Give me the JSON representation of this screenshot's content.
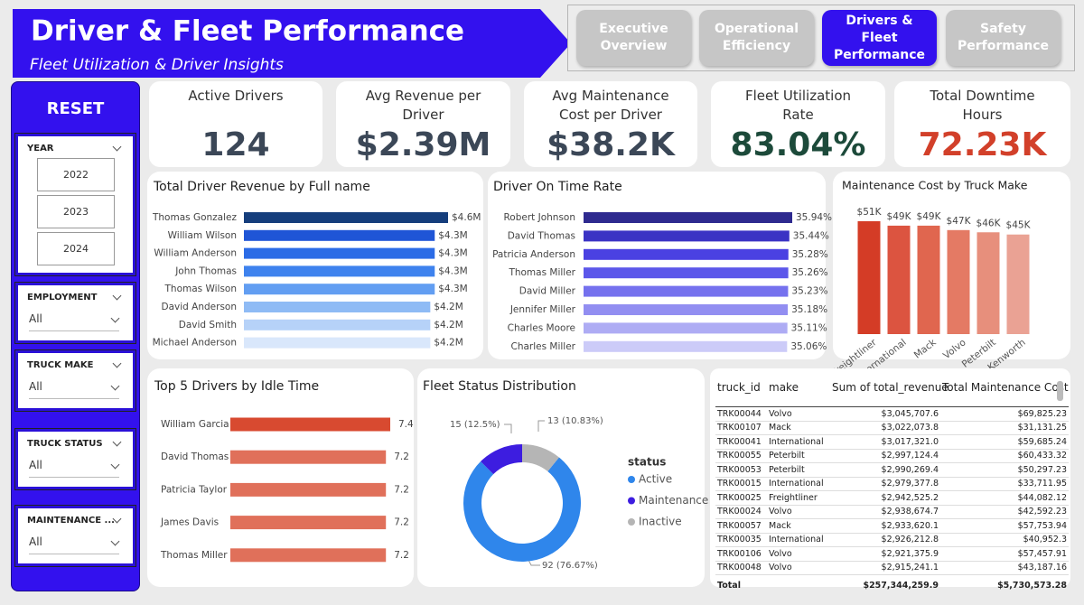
{
  "header": {
    "title": "Driver & Fleet Performance",
    "subtitle": "Fleet Utilization & Driver Insights"
  },
  "nav": {
    "items": [
      "Executive Overview",
      "Operational Efficiency",
      "Drivers & Fleet Performance",
      "Safety Performance"
    ],
    "active": 2
  },
  "sidebar": {
    "reset": "RESET",
    "slicers": [
      {
        "title": "YEAR",
        "options": [
          "2022",
          "2023",
          "2024"
        ]
      },
      {
        "title": "EMPLOYMENT",
        "selection": "All"
      },
      {
        "title": "TRUCK MAKE",
        "selection": "All"
      },
      {
        "title": "TRUCK STATUS",
        "selection": "All"
      },
      {
        "title": "MAINTENANCE ...",
        "selection": "All"
      }
    ]
  },
  "kpis": [
    {
      "label": "Active Drivers",
      "value": "124",
      "color": "#3b4757"
    },
    {
      "label": "Avg Revenue per Driver",
      "value": "$2.39M",
      "color": "#3b4757"
    },
    {
      "label": "Avg Maintenance Cost per Driver",
      "value": "$38.2K",
      "color": "#3b4757"
    },
    {
      "label": "Fleet Utilization Rate",
      "value": "83.04%",
      "color": "#1c4a3a"
    },
    {
      "label": "Total Downtime Hours",
      "value": "72.23K",
      "color": "#d2402a"
    }
  ],
  "chart_data": [
    {
      "type": "bar",
      "orientation": "horizontal",
      "title": "Total Driver Revenue by Full name",
      "categories": [
        "Thomas Gonzalez",
        "William Wilson",
        "William Anderson",
        "John Thomas",
        "Thomas Wilson",
        "David Anderson",
        "David Smith",
        "Michael Anderson"
      ],
      "values": [
        4.6,
        4.3,
        4.3,
        4.3,
        4.3,
        4.2,
        4.2,
        4.2
      ],
      "value_labels": [
        "$4.6M",
        "$4.3M",
        "$4.3M",
        "$4.3M",
        "$4.3M",
        "$4.2M",
        "$4.2M",
        "$4.2M"
      ],
      "colors": [
        "#153e7c",
        "#1f55d6",
        "#2b6be6",
        "#3e82ee",
        "#629ef2",
        "#8fbbf5",
        "#b6d2f8",
        "#d9e7fb"
      ]
    },
    {
      "type": "bar",
      "orientation": "horizontal",
      "title": "Driver On Time Rate",
      "categories": [
        "Robert Johnson",
        "David Thomas",
        "Patricia Anderson",
        "Thomas Miller",
        "David Miller",
        "Jennifer Miller",
        "Charles Moore",
        "Charles Miller"
      ],
      "values": [
        35.94,
        35.44,
        35.28,
        35.26,
        35.23,
        35.18,
        35.11,
        35.06
      ],
      "value_labels": [
        "35.94%",
        "35.44%",
        "35.28%",
        "35.26%",
        "35.23%",
        "35.18%",
        "35.11%",
        "35.06%"
      ],
      "colors": [
        "#2e2a8f",
        "#3b33c4",
        "#4a41e2",
        "#5c57ea",
        "#7571ee",
        "#928ef1",
        "#aeacf4",
        "#cccbf8"
      ]
    },
    {
      "type": "bar",
      "orientation": "vertical",
      "title": "Maintenance Cost by Truck Make",
      "categories": [
        "Freightliner",
        "International",
        "Mack",
        "Volvo",
        "Peterbilt",
        "Kenworth"
      ],
      "values": [
        51,
        49,
        49,
        47,
        46,
        45
      ],
      "value_labels": [
        "$51K",
        "$49K",
        "$49K",
        "$47K",
        "$46K",
        "$45K"
      ],
      "colors": [
        "#d43c26",
        "#dc5440",
        "#e0664f",
        "#e47a64",
        "#e78f7c",
        "#eaa294"
      ]
    },
    {
      "type": "bar",
      "orientation": "horizontal",
      "title": "Top 5 Drivers by Idle Time",
      "categories": [
        "William Garcia",
        "David Thomas",
        "Patricia Taylor",
        "James Davis",
        "Thomas Miller"
      ],
      "values": [
        7.4,
        7.2,
        7.2,
        7.2,
        7.2
      ],
      "colors": [
        "#d84a30",
        "#e0705a",
        "#e0705a",
        "#e0705a",
        "#e0705a"
      ]
    },
    {
      "type": "donut",
      "title": "Fleet Status Distribution",
      "legend_title": "status",
      "categories": [
        "Active",
        "Maintenance",
        "Inactive"
      ],
      "values": [
        92,
        15,
        13
      ],
      "value_labels": [
        "92 (76.67%)",
        "15 (12.5%)",
        "13 (10.83%)"
      ],
      "colors": [
        "#2f86eb",
        "#3d1de0",
        "#b5b5b5"
      ]
    }
  ],
  "table": {
    "columns": [
      "truck_id",
      "make",
      "Sum of total_revenue",
      "Total Maintenance Cost"
    ],
    "rows": [
      [
        "TRK00044",
        "Volvo",
        "$3,045,707.6",
        "$69,825.23"
      ],
      [
        "TRK00107",
        "Mack",
        "$3,022,073.8",
        "$31,131.25"
      ],
      [
        "TRK00041",
        "International",
        "$3,017,321.0",
        "$59,685.24"
      ],
      [
        "TRK00055",
        "Peterbilt",
        "$2,997,124.4",
        "$60,433.32"
      ],
      [
        "TRK00053",
        "Peterbilt",
        "$2,990,269.4",
        "$50,297.23"
      ],
      [
        "TRK00015",
        "International",
        "$2,979,377.8",
        "$33,711.95"
      ],
      [
        "TRK00025",
        "Freightliner",
        "$2,942,525.2",
        "$44,082.12"
      ],
      [
        "TRK00024",
        "Volvo",
        "$2,938,674.7",
        "$42,592.23"
      ],
      [
        "TRK00057",
        "Mack",
        "$2,933,620.1",
        "$57,753.94"
      ],
      [
        "TRK00035",
        "International",
        "$2,926,212.8",
        "$40,952.3"
      ],
      [
        "TRK00106",
        "Volvo",
        "$2,921,375.9",
        "$57,457.91"
      ],
      [
        "TRK00048",
        "Volvo",
        "$2,915,241.1",
        "$43,187.16"
      ]
    ],
    "total": [
      "Total",
      "$257,344,259.9",
      "$5,730,573.28"
    ]
  }
}
